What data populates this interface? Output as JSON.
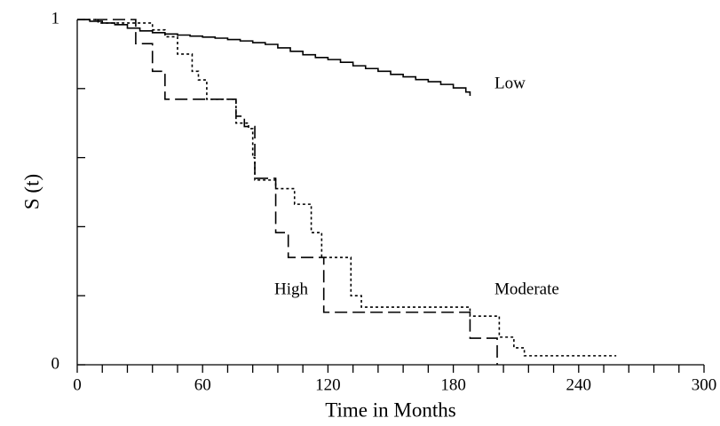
{
  "chart_data": {
    "type": "step",
    "x_label": "Time in Months",
    "y_label": "S (t)",
    "xlim": [
      0,
      300
    ],
    "ylim": [
      0,
      1
    ],
    "xticks": [
      0,
      60,
      120,
      180,
      240,
      300
    ],
    "x_minor_ticks": [
      12,
      24,
      36,
      48,
      72,
      84,
      96,
      108,
      132,
      144,
      156,
      168,
      192,
      204,
      216,
      228,
      252,
      264,
      276,
      288
    ],
    "yticks": [
      0,
      1
    ],
    "y_minor_ticks": [
      0.2,
      0.4,
      0.6,
      0.8
    ],
    "series": [
      {
        "name": "Low",
        "color": "#000000",
        "dash": "solid",
        "x": [
          0,
          6,
          12,
          18,
          24,
          30,
          36,
          42,
          48,
          54,
          60,
          66,
          72,
          78,
          84,
          90,
          96,
          102,
          108,
          114,
          120,
          126,
          132,
          138,
          144,
          150,
          156,
          162,
          168,
          174,
          180,
          186,
          188
        ],
        "values": [
          1.0,
          0.995,
          0.99,
          0.985,
          0.975,
          0.967,
          0.962,
          0.958,
          0.955,
          0.952,
          0.949,
          0.946,
          0.942,
          0.938,
          0.933,
          0.928,
          0.918,
          0.908,
          0.898,
          0.89,
          0.884,
          0.876,
          0.866,
          0.858,
          0.85,
          0.841,
          0.834,
          0.826,
          0.82,
          0.812,
          0.802,
          0.79,
          0.779
        ]
      },
      {
        "name": "High",
        "color": "#000000",
        "dash": "long-dash",
        "x": [
          0,
          28,
          36,
          42,
          76,
          80,
          85,
          95,
          101,
          118,
          188,
          201
        ],
        "values": [
          1.0,
          0.93,
          0.85,
          0.769,
          0.72,
          0.69,
          0.54,
          0.383,
          0.311,
          0.152,
          0.077,
          0
        ]
      },
      {
        "name": "Moderate",
        "color": "#000000",
        "dash": "dotted",
        "x": [
          0,
          10,
          36,
          42,
          48,
          55,
          58,
          62,
          76,
          82,
          84,
          85,
          95,
          104,
          112,
          117,
          131,
          136,
          188,
          202,
          209,
          214,
          258
        ],
        "values": [
          1.0,
          0.99,
          0.97,
          0.95,
          0.9,
          0.85,
          0.825,
          0.769,
          0.7,
          0.684,
          0.6,
          0.535,
          0.51,
          0.465,
          0.383,
          0.311,
          0.2,
          0.167,
          0.141,
          0.08,
          0.049,
          0.026,
          0.026
        ]
      }
    ]
  }
}
